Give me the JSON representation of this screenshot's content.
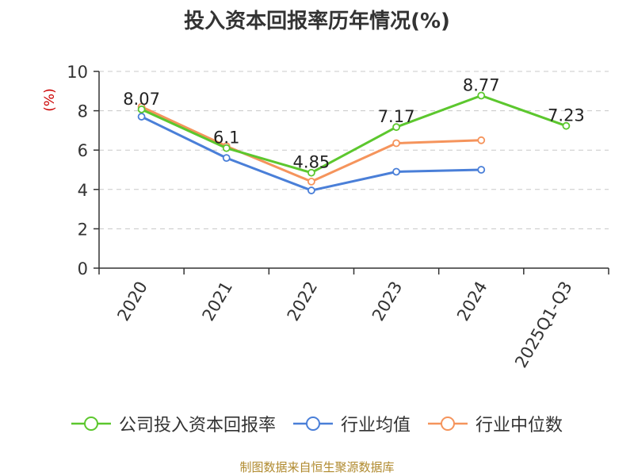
{
  "title": "投入资本回报率历年情况(%)",
  "source": "制图数据来自恒生聚源数据库",
  "colors": {
    "company": "#5cc72e",
    "industry_avg": "#4a7fd8",
    "industry_median": "#f5945c",
    "ylabel": "#cc0000",
    "source": "#b08a2e"
  },
  "chart_data": {
    "type": "line",
    "title": "投入资本回报率历年情况(%)",
    "ylabel": "(%)",
    "xlabel": "",
    "categories": [
      "2020",
      "2021",
      "2022",
      "2023",
      "2024",
      "2025Q1-Q3"
    ],
    "ylim": [
      0,
      10
    ],
    "yticks": [
      0,
      2,
      4,
      6,
      8,
      10
    ],
    "grid": true,
    "legend_position": "bottom",
    "series": [
      {
        "name": "公司投入资本回报率",
        "color": "#5cc72e",
        "show_labels": true,
        "labels": [
          "8.07",
          "6.1",
          "4.85",
          "7.17",
          "8.77",
          "7.23"
        ],
        "values": [
          8.07,
          6.1,
          4.85,
          7.17,
          8.77,
          7.23
        ]
      },
      {
        "name": "行业均值",
        "color": "#4a7fd8",
        "show_labels": false,
        "values": [
          7.7,
          5.6,
          3.95,
          4.9,
          5.0,
          null
        ]
      },
      {
        "name": "行业中位数",
        "color": "#f5945c",
        "show_labels": false,
        "values": [
          8.2,
          6.2,
          4.4,
          6.35,
          6.5,
          null
        ]
      }
    ]
  }
}
